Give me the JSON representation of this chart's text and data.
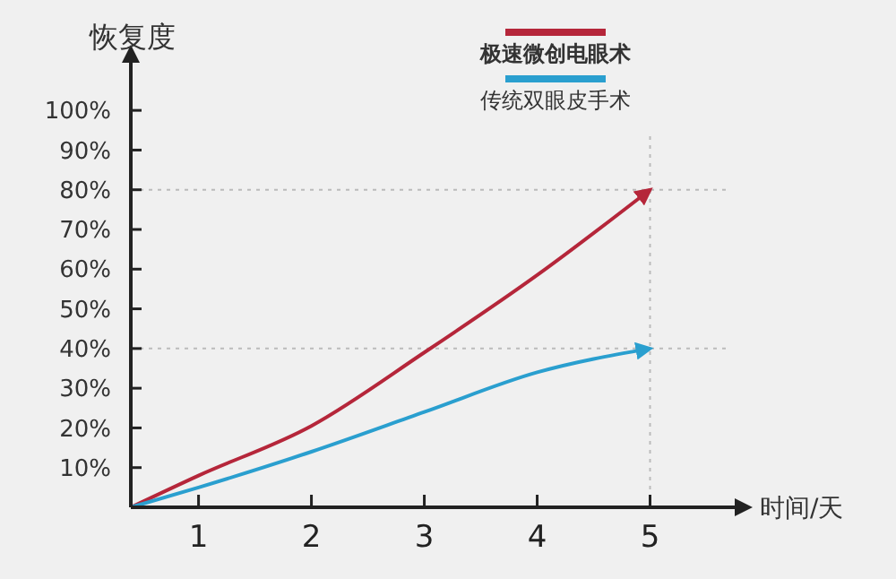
{
  "chart_data": {
    "type": "line",
    "ylabel": "恢复度",
    "xlabel": "时间/天",
    "x": [
      0.4,
      1,
      2,
      3,
      4,
      5
    ],
    "series": [
      {
        "name": "极速微创电眼术",
        "color": "#b5263a",
        "values": [
          0,
          8,
          20.5,
          39,
          58.5,
          80
        ]
      },
      {
        "name": "传统双眼皮手术",
        "color": "#2a9fcf",
        "values": [
          0,
          5,
          14,
          24,
          34,
          40
        ]
      }
    ],
    "xlim": [
      0.4,
      5.75
    ],
    "ylim": [
      0,
      112
    ],
    "xticks": [
      1,
      2,
      3,
      4,
      5
    ],
    "yticks": [
      {
        "value": 10,
        "label": "10%"
      },
      {
        "value": 20,
        "label": "20%"
      },
      {
        "value": 30,
        "label": "30%"
      },
      {
        "value": 40,
        "label": "40%"
      },
      {
        "value": 50,
        "label": "50%"
      },
      {
        "value": 60,
        "label": "60%"
      },
      {
        "value": 70,
        "label": "70%"
      },
      {
        "value": 80,
        "label": "80%"
      },
      {
        "value": 90,
        "label": "90%"
      },
      {
        "value": 100,
        "label": "100%"
      }
    ],
    "ref_lines": [
      {
        "axis": "y",
        "value": 80,
        "line_style": "dotted"
      },
      {
        "axis": "y",
        "value": 40,
        "line_style": "dotted"
      },
      {
        "axis": "x",
        "value": 5,
        "line_style": "dotted"
      }
    ],
    "grid": false,
    "legend": "top",
    "marker": "none",
    "line_style": "solid"
  }
}
